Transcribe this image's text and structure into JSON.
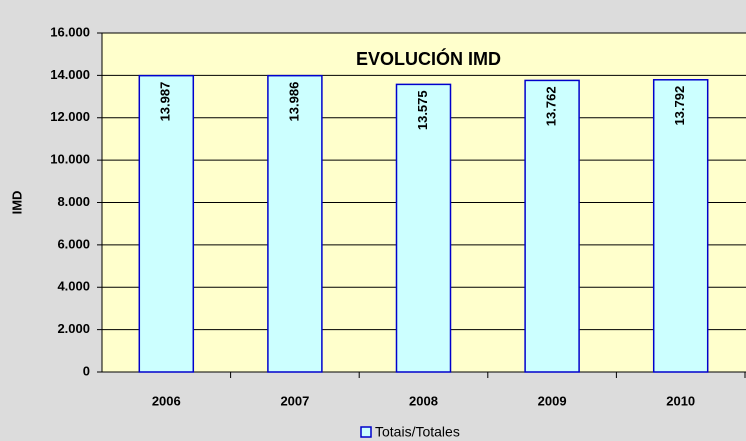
{
  "chart_data": {
    "type": "bar",
    "title": "EVOLUCIÓN IMD",
    "ylabel": "IMD",
    "categories": [
      "2006",
      "2007",
      "2008",
      "2009",
      "2010"
    ],
    "series": [
      {
        "name": "Totais/Totales",
        "color": "#ccffff",
        "edge_color": "#0000cc",
        "values": [
          13987,
          13986,
          13575,
          13762,
          13792
        ],
        "value_labels": [
          "13.987",
          "13.986",
          "13.575",
          "13.762",
          "13.792"
        ]
      }
    ],
    "ylim": [
      0,
      16000
    ],
    "yticks": [
      0,
      {
        "value": 2000,
        "label": "2.000"
      },
      {
        "value": 4000,
        "label": "4.000"
      },
      {
        "value": 6000,
        "label": "6.000"
      },
      {
        "value": 8000,
        "label": "8.000"
      },
      {
        "value": 10000,
        "label": "10.000"
      },
      {
        "value": 12000,
        "label": "12.000"
      },
      {
        "value": 14000,
        "label": "14.000"
      },
      {
        "value": 16000,
        "label": "16.000"
      }
    ],
    "grid": true,
    "plot_background": "#ffffcc",
    "legend": "bottom"
  }
}
